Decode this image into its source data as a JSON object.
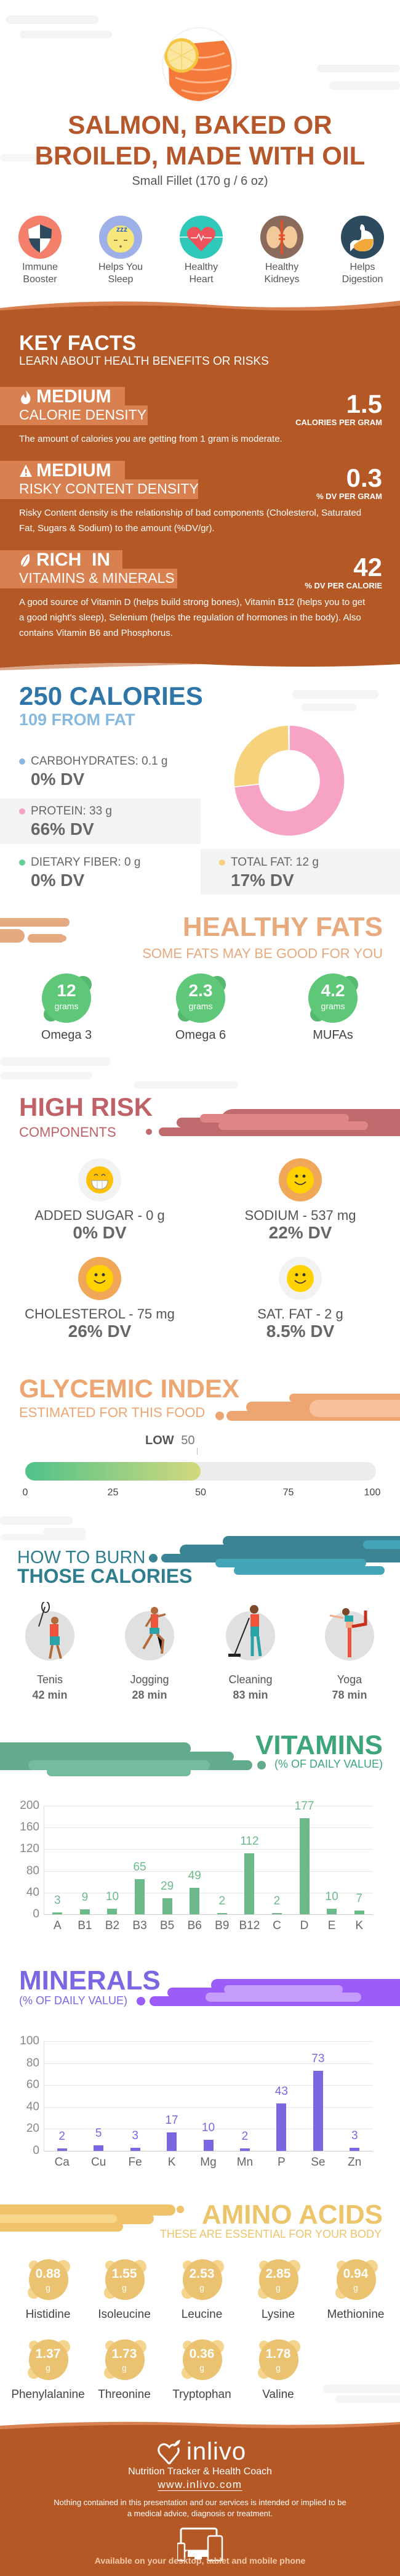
{
  "header": {
    "title_line1": "SALMON, BAKED OR",
    "title_line2": "BROILED, MADE WITH OIL",
    "serving": "Small Fillet (170 g / 6 oz)"
  },
  "benefits": [
    {
      "line1": "Immune",
      "line2": "Booster",
      "icon": "shield-icon"
    },
    {
      "line1": "Helps You",
      "line2": "Sleep",
      "icon": "sleep-icon"
    },
    {
      "line1": "Healthy",
      "line2": "Heart",
      "icon": "heart-icon"
    },
    {
      "line1": "Healthy",
      "line2": "Kidneys",
      "icon": "kidneys-icon"
    },
    {
      "line1": "Helps",
      "line2": "Digestion",
      "icon": "stomach-icon"
    }
  ],
  "key_facts": {
    "title": "KEY FACTS",
    "subtitle": "LEARN ABOUT HEALTH BENEFITS OR RISKS",
    "items": [
      {
        "icon": "flame-icon",
        "level": "MEDIUM",
        "category": "CALORIE DENSITY",
        "value": "1.5",
        "unit": "CALORIES PER GRAM",
        "description": "The amount of calories you are getting from 1 gram is moderate."
      },
      {
        "icon": "warning-icon",
        "level": "MEDIUM",
        "category": "RISKY CONTENT DENSITY",
        "value": "0.3",
        "unit": "% DV PER GRAM",
        "description": "Risky Content density is the relationship of bad components (Cholesterol, Saturated Fat, Sugars & Sodium) to the amount (%DV/gr)."
      },
      {
        "icon": "leaf-icon",
        "level": "RICH  IN",
        "category": "VITAMINS & MINERALS",
        "value": "42",
        "unit": "% DV PER CALORIE",
        "description": "A good source of Vitamin D (helps build strong bones), Vitamin B12 (helps you to get a good night's sleep), Selenium (helps the regulation of hormones in the body). Also contains Vitamin B6 and Phosphorus."
      }
    ]
  },
  "calories": {
    "title": "250 CALORIES",
    "from_fat": "109 FROM FAT",
    "nutrients": [
      {
        "label": "CARBOHYDRATES: 0.1 g",
        "dv": "0% DV",
        "color": "#8ab8e2"
      },
      {
        "label": "PROTEIN: 33 g",
        "dv": "66% DV",
        "color": "#f7a3c6"
      },
      {
        "label": "DIETARY FIBER: 0 g",
        "dv": "0% DV",
        "color": "#5fcf9a"
      },
      {
        "label": "TOTAL FAT: 12 g",
        "dv": "17% DV",
        "color": "#f6d27c"
      }
    ]
  },
  "healthy_fats": {
    "title": "HEALTHY FATS",
    "subtitle": "SOME FATS MAY BE GOOD FOR YOU",
    "items": [
      {
        "value": "12",
        "unit": "grams",
        "name": "Omega 3"
      },
      {
        "value": "2.3",
        "unit": "grams",
        "name": "Omega 6"
      },
      {
        "value": "4.2",
        "unit": "grams",
        "name": "MUFAs"
      }
    ]
  },
  "high_risk": {
    "title": "HIGH RISK",
    "subtitle": "COMPONENTS",
    "items": [
      {
        "label": "ADDED SUGAR - 0 g",
        "dv": "0% DV",
        "icon": "grinning-face-icon"
      },
      {
        "label": "SODIUM - 537 mg",
        "dv": "22% DV",
        "icon": "smiley-face-icon"
      },
      {
        "label": "CHOLESTEROL - 75 mg",
        "dv": "26% DV",
        "icon": "smiley-face-icon"
      },
      {
        "label": "SAT. FAT - 2 g",
        "dv": "8.5% DV",
        "icon": "smiley-face-icon"
      }
    ]
  },
  "glycemic": {
    "title": "GLYCEMIC INDEX",
    "subtitle": "ESTIMATED FOR THIS FOOD",
    "level": "LOW",
    "value_label": "50",
    "value": 50,
    "ticks": [
      "0",
      "25",
      "50",
      "75",
      "100"
    ]
  },
  "burn": {
    "title_line1": "HOW TO BURN",
    "title_line2": "THOSE CALORIES",
    "activities": [
      {
        "name": "Tenis",
        "time": "42 min",
        "icon": "tennis-player-icon"
      },
      {
        "name": "Jogging",
        "time": "28 min",
        "icon": "jogger-icon"
      },
      {
        "name": "Cleaning",
        "time": "83 min",
        "icon": "cleaning-person-icon"
      },
      {
        "name": "Yoga",
        "time": "78 min",
        "icon": "yoga-pose-icon"
      }
    ]
  },
  "vitamins": {
    "title": "VITAMINS",
    "subtitle": "(% OF DAILY VALUE)"
  },
  "minerals": {
    "title": "MINERALS",
    "subtitle": "(% OF DAILY VALUE)"
  },
  "amino_acids": {
    "title": "AMINO ACIDS",
    "subtitle": "THESE ARE ESSENTIAL FOR YOUR BODY",
    "items": [
      {
        "value": "0.88",
        "unit": "g",
        "name": "Histidine"
      },
      {
        "value": "1.55",
        "unit": "g",
        "name": "Isoleucine"
      },
      {
        "value": "2.53",
        "unit": "g",
        "name": "Leucine"
      },
      {
        "value": "2.85",
        "unit": "g",
        "name": "Lysine"
      },
      {
        "value": "0.94",
        "unit": "g",
        "name": "Methionine"
      },
      {
        "value": "1.37",
        "unit": "g",
        "name": "Phenylalanine"
      },
      {
        "value": "1.73",
        "unit": "g",
        "name": "Threonine"
      },
      {
        "value": "0.36",
        "unit": "g",
        "name": "Tryptophan"
      },
      {
        "value": "1.78",
        "unit": "g",
        "name": "Valine"
      }
    ]
  },
  "footer": {
    "brand": "inlivo",
    "tagline": "Nutrition Tracker & Health Coach",
    "url": "www.inlivo.com",
    "disclaimer": "Nothing contained in this presentation and our services is intended or implied to be a medical advice, diagnosis or treatment.",
    "availability": "Available on your desktop, tablet and mobile phone"
  },
  "colors": {
    "brand_brown": "#b45826",
    "highlight": "#d8804f",
    "calories_blue": "#2f76a8",
    "healthy_fats": "#e8a97c",
    "high_risk": "#bf6166",
    "glycemic": "#eda672",
    "burn_teal": "#2f7e8d",
    "vitamins_green": "#6cba8a",
    "minerals_purple": "#7b66e2",
    "amino_yellow": "#ebc26f"
  },
  "chart_data": [
    {
      "type": "pie",
      "variant": "donut",
      "categories": [
        "Protein",
        "Total Fat",
        "Carbohydrates",
        "Dietary Fiber"
      ],
      "values": [
        33,
        12,
        0.1,
        0
      ],
      "unit": "g",
      "colors": [
        "#f7a3c6",
        "#f6d27c",
        "#8ab8e2",
        "#5fcf9a"
      ]
    },
    {
      "type": "bar",
      "title": "VITAMINS",
      "subtitle": "(% OF DAILY VALUE)",
      "categories": [
        "A",
        "B1",
        "B2",
        "B3",
        "B5",
        "B6",
        "B9",
        "B12",
        "C",
        "D",
        "E",
        "K"
      ],
      "values": [
        3,
        9,
        10,
        65,
        29,
        49,
        2,
        112,
        2,
        177,
        10,
        7
      ],
      "ylim": [
        0,
        200
      ],
      "yticks": [
        "0",
        "40",
        "80",
        "120",
        "160",
        "200"
      ],
      "grid": true,
      "color": "#6cba8a"
    },
    {
      "type": "bar",
      "title": "MINERALS",
      "subtitle": "(% OF DAILY VALUE)",
      "categories": [
        "Ca",
        "Cu",
        "Fe",
        "K",
        "Mg",
        "Mn",
        "P",
        "Se",
        "Zn"
      ],
      "values": [
        2,
        5,
        3,
        17,
        10,
        2,
        43,
        73,
        3
      ],
      "ylim": [
        0,
        100
      ],
      "yticks": [
        "0",
        "20",
        "40",
        "60",
        "80",
        "100"
      ],
      "grid": true,
      "color": "#7b66e2"
    }
  ]
}
